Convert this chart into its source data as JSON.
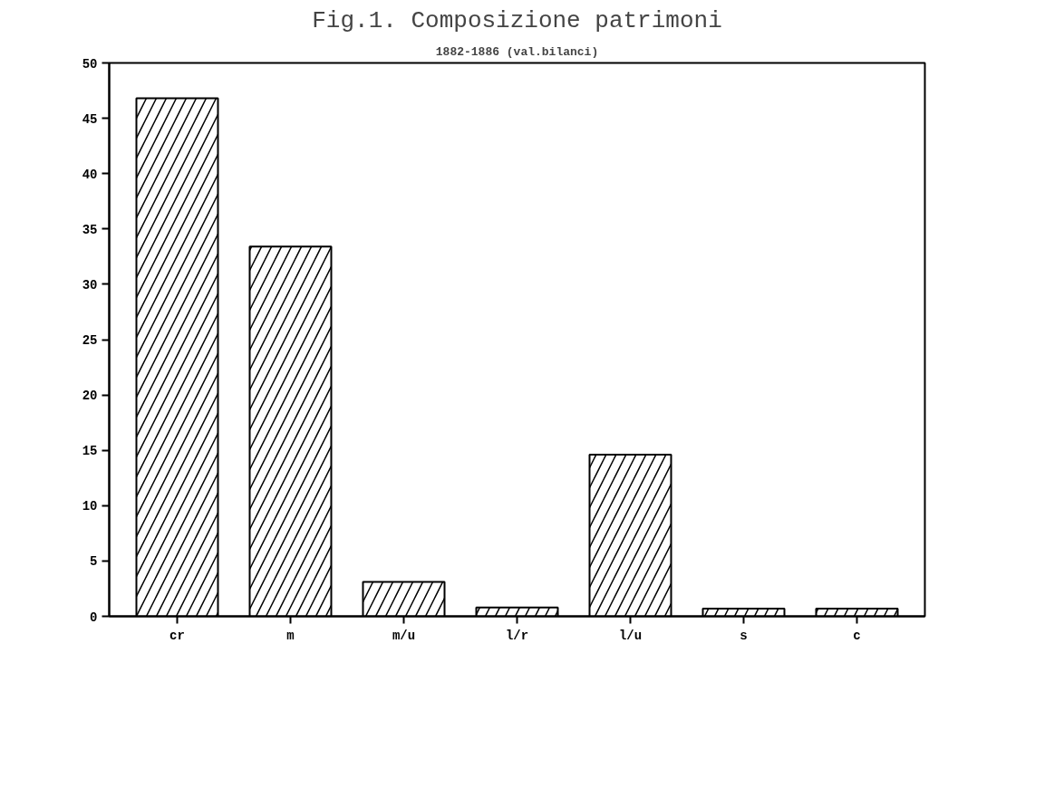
{
  "chart_data": {
    "type": "bar",
    "title": "Fig.1. Composizione patrimoni",
    "subtitle": "1882-1886 (val.bilanci)",
    "categories": [
      "cr",
      "m",
      "m/u",
      "l/r",
      "l/u",
      "s",
      "c"
    ],
    "values": [
      46.8,
      33.4,
      3.1,
      0.8,
      14.6,
      0.7,
      0.7
    ],
    "color": "#000000",
    "ylim": [
      0,
      50
    ],
    "yticks": [
      0,
      5,
      10,
      15,
      20,
      25,
      30,
      35,
      40,
      45,
      50
    ],
    "grid": false
  }
}
